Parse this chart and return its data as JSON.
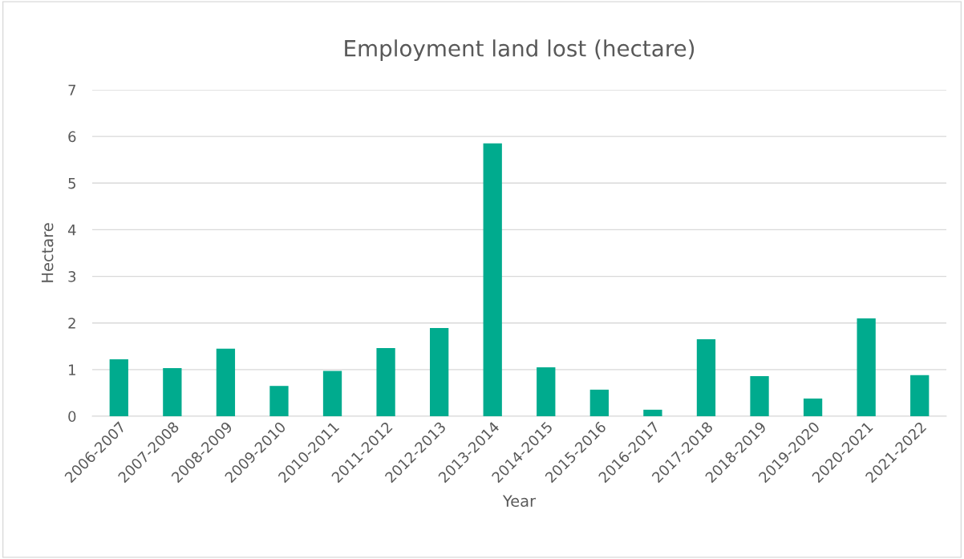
{
  "chart_data": {
    "type": "bar",
    "title": "Employment land lost (hectare)",
    "xlabel": "Year",
    "ylabel": "Hectare",
    "categories": [
      "2006-2007",
      "2007-2008",
      "2008-2009",
      "2009-2010",
      "2010-2011",
      "2011-2012",
      "2012-2013",
      "2013-2014",
      "2014-2015",
      "2015-2016",
      "2016-2017",
      "2017-2018",
      "2018-2019",
      "2019-2020",
      "2020-2021",
      "2021-2022"
    ],
    "values": [
      1.22,
      1.03,
      1.45,
      0.65,
      0.97,
      1.46,
      1.89,
      5.85,
      1.05,
      0.57,
      0.14,
      1.65,
      0.86,
      0.38,
      2.1,
      0.88
    ],
    "color": "#00ab8e",
    "ylim": [
      0,
      7
    ],
    "yticks": [
      0,
      1,
      2,
      3,
      4,
      5,
      6,
      7
    ],
    "grid": "y"
  }
}
